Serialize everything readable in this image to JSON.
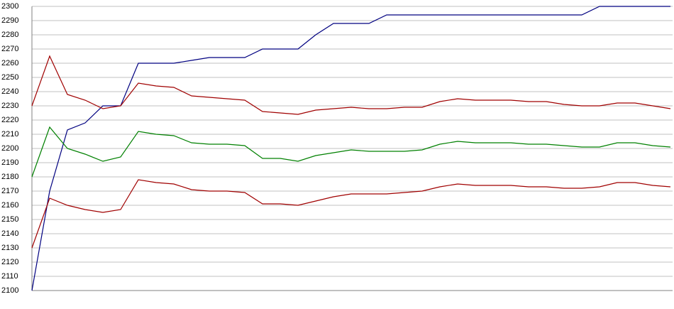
{
  "chart_data": {
    "type": "line",
    "ylim": [
      2100,
      2300
    ],
    "yticks": [
      2100,
      2110,
      2120,
      2130,
      2140,
      2150,
      2160,
      2170,
      2180,
      2190,
      2200,
      2210,
      2220,
      2230,
      2240,
      2250,
      2260,
      2270,
      2280,
      2290,
      2300
    ],
    "grid": true,
    "series": [
      {
        "color": "#000080",
        "values": [
          2100,
          2170,
          2213,
          2218,
          2230,
          2230,
          2260,
          2260,
          2260,
          2262,
          2264,
          2264,
          2264,
          2270,
          2270,
          2270,
          2280,
          2288,
          2288,
          2288,
          2294,
          2294,
          2294,
          2294,
          2294,
          2294,
          2294,
          2294,
          2294,
          2294,
          2294,
          2294,
          2300,
          2300,
          2300,
          2300,
          2300
        ]
      },
      {
        "color": "#a00000",
        "values": [
          2230,
          2265,
          2238,
          2234,
          2228,
          2230,
          2246,
          2244,
          2243,
          2237,
          2236,
          2235,
          2234,
          2226,
          2225,
          2224,
          2227,
          2228,
          2229,
          2228,
          2228,
          2229,
          2229,
          2233,
          2235,
          2234,
          2234,
          2234,
          2233,
          2233,
          2231,
          2230,
          2230,
          2232,
          2232,
          2230,
          2228
        ]
      },
      {
        "color": "#008000",
        "values": [
          2180,
          2215,
          2200,
          2196,
          2191,
          2194,
          2212,
          2210,
          2209,
          2204,
          2203,
          2203,
          2202,
          2193,
          2193,
          2191,
          2195,
          2197,
          2199,
          2198,
          2198,
          2198,
          2199,
          2203,
          2205,
          2204,
          2204,
          2204,
          2203,
          2203,
          2202,
          2201,
          2201,
          2204,
          2204,
          2202,
          2201
        ]
      },
      {
        "color": "#a00000",
        "values": [
          2130,
          2165,
          2160,
          2157,
          2155,
          2157,
          2178,
          2176,
          2175,
          2171,
          2170,
          2170,
          2169,
          2161,
          2161,
          2160,
          2163,
          2166,
          2168,
          2168,
          2168,
          2169,
          2170,
          2173,
          2175,
          2174,
          2174,
          2174,
          2173,
          2173,
          2172,
          2172,
          2173,
          2176,
          2176,
          2174,
          2173
        ]
      }
    ]
  }
}
